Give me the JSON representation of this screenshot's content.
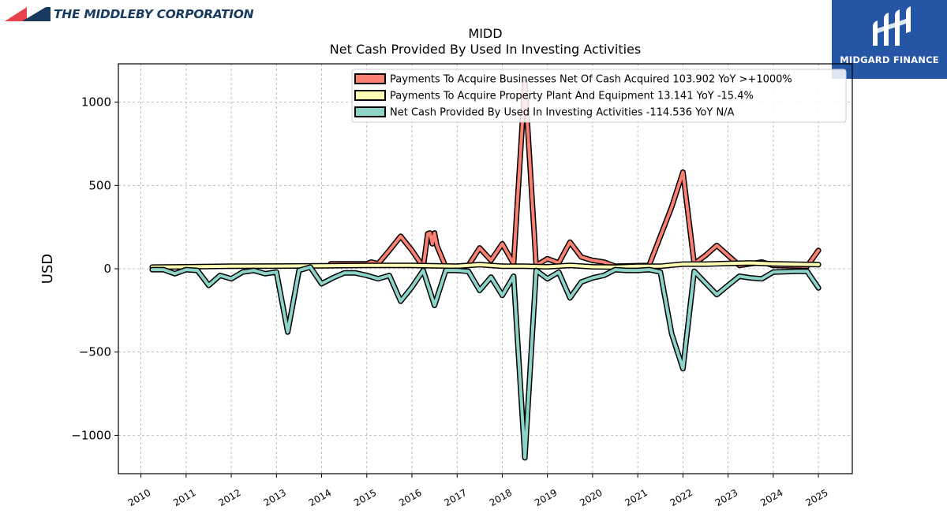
{
  "branding": {
    "left_logo_text": "THE MIDDLEBY CORPORATION",
    "right_logo_text": "MIDGARD FINANCE",
    "left_logo_icon": "red-navy-triangles-icon",
    "right_logo_icon": "midgard-m-icon"
  },
  "chart_data": {
    "type": "line",
    "title": "MIDD",
    "subtitle": "Net Cash Provided By Used In Investing Activities",
    "ylabel": "USD",
    "xlabel": "",
    "xlim": [
      2009.5,
      2025.75
    ],
    "ylim": [
      -1230,
      1230
    ],
    "y_ticks": [
      -1000,
      -500,
      0,
      500,
      1000
    ],
    "y_tick_labels": [
      "−1000",
      "−500",
      "0",
      "500",
      "1000"
    ],
    "x_ticks": [
      2010,
      2011,
      2012,
      2013,
      2014,
      2015,
      2016,
      2017,
      2018,
      2019,
      2020,
      2021,
      2022,
      2023,
      2024,
      2025
    ],
    "x_tick_labels": [
      "2010",
      "2011",
      "2012",
      "2013",
      "2014",
      "2015",
      "2016",
      "2017",
      "2018",
      "2019",
      "2020",
      "2021",
      "2022",
      "2023",
      "2024",
      "2025"
    ],
    "grid": true,
    "legend_position": "top-right",
    "series": [
      {
        "name": "Payments To Acquire Businesses Net Of Cash Acquired",
        "legend_label": "Payments To Acquire Businesses Net Of Cash Acquired  103.902 YoY >+1000%",
        "color": "#fa8072",
        "points": [
          [
            2014.2,
            30
          ],
          [
            2015.0,
            30
          ],
          [
            2015.1,
            40
          ],
          [
            2015.25,
            30
          ],
          [
            2015.5,
            110
          ],
          [
            2015.75,
            195
          ],
          [
            2016.0,
            110
          ],
          [
            2016.25,
            10
          ],
          [
            2016.35,
            210
          ],
          [
            2016.4,
            215
          ],
          [
            2016.45,
            150
          ],
          [
            2016.5,
            215
          ],
          [
            2016.55,
            140
          ],
          [
            2016.75,
            10
          ],
          [
            2017.25,
            20
          ],
          [
            2017.5,
            125
          ],
          [
            2017.75,
            50
          ],
          [
            2018.0,
            150
          ],
          [
            2018.25,
            30
          ],
          [
            2018.5,
            1120
          ],
          [
            2018.75,
            20
          ],
          [
            2019.0,
            60
          ],
          [
            2019.25,
            35
          ],
          [
            2019.5,
            160
          ],
          [
            2019.75,
            70
          ],
          [
            2020.0,
            50
          ],
          [
            2020.25,
            40
          ],
          [
            2020.5,
            15
          ],
          [
            2021.25,
            20
          ],
          [
            2021.75,
            370
          ],
          [
            2022.0,
            580
          ],
          [
            2022.25,
            30
          ],
          [
            2022.5,
            80
          ],
          [
            2022.75,
            140
          ],
          [
            2023.0,
            80
          ],
          [
            2023.25,
            20
          ],
          [
            2023.5,
            30
          ],
          [
            2023.75,
            40
          ],
          [
            2024.0,
            20
          ],
          [
            2024.75,
            15
          ],
          [
            2025.0,
            110
          ]
        ]
      },
      {
        "name": "Payments To Acquire Property Plant And Equipment",
        "legend_label": "Payments To Acquire Property Plant And Equipment  13.141 YoY -15.4%",
        "color": "#ffffb3",
        "points": [
          [
            2010.25,
            10
          ],
          [
            2011.0,
            12
          ],
          [
            2012.0,
            15
          ],
          [
            2013.0,
            16
          ],
          [
            2014.0,
            18
          ],
          [
            2015.0,
            20
          ],
          [
            2016.0,
            20
          ],
          [
            2017.0,
            15
          ],
          [
            2017.5,
            25
          ],
          [
            2018.0,
            15
          ],
          [
            2018.5,
            15
          ],
          [
            2019.0,
            12
          ],
          [
            2019.5,
            20
          ],
          [
            2020.0,
            12
          ],
          [
            2020.5,
            10
          ],
          [
            2021.0,
            15
          ],
          [
            2021.5,
            15
          ],
          [
            2022.0,
            28
          ],
          [
            2022.5,
            28
          ],
          [
            2023.0,
            32
          ],
          [
            2023.5,
            35
          ],
          [
            2024.0,
            30
          ],
          [
            2024.5,
            27
          ],
          [
            2025.0,
            25
          ]
        ]
      },
      {
        "name": "Net Cash Provided By Used In Investing Activities",
        "legend_label": "Net Cash Provided By Used In Investing Activities  -114.536 YoY N/A",
        "color": "#8dd3c7",
        "points": [
          [
            2010.25,
            -5
          ],
          [
            2010.5,
            -5
          ],
          [
            2010.75,
            -30
          ],
          [
            2011.0,
            -5
          ],
          [
            2011.25,
            -10
          ],
          [
            2011.5,
            -100
          ],
          [
            2011.75,
            -40
          ],
          [
            2012.0,
            -60
          ],
          [
            2012.25,
            -20
          ],
          [
            2012.5,
            -10
          ],
          [
            2012.75,
            -30
          ],
          [
            2013.0,
            -20
          ],
          [
            2013.25,
            -380
          ],
          [
            2013.5,
            -10
          ],
          [
            2013.75,
            10
          ],
          [
            2014.0,
            -90
          ],
          [
            2014.25,
            -55
          ],
          [
            2014.5,
            -25
          ],
          [
            2014.75,
            -25
          ],
          [
            2015.0,
            -40
          ],
          [
            2015.25,
            -60
          ],
          [
            2015.5,
            -40
          ],
          [
            2015.75,
            -195
          ],
          [
            2016.0,
            -110
          ],
          [
            2016.25,
            -10
          ],
          [
            2016.5,
            -220
          ],
          [
            2016.75,
            -10
          ],
          [
            2017.0,
            -10
          ],
          [
            2017.25,
            -15
          ],
          [
            2017.5,
            -130
          ],
          [
            2017.75,
            -50
          ],
          [
            2018.0,
            -160
          ],
          [
            2018.25,
            -45
          ],
          [
            2018.5,
            -1135
          ],
          [
            2018.75,
            -10
          ],
          [
            2019.0,
            -60
          ],
          [
            2019.25,
            -20
          ],
          [
            2019.5,
            -175
          ],
          [
            2019.75,
            -80
          ],
          [
            2020.0,
            -55
          ],
          [
            2020.25,
            -40
          ],
          [
            2020.5,
            -5
          ],
          [
            2020.75,
            -10
          ],
          [
            2021.0,
            -10
          ],
          [
            2021.25,
            -5
          ],
          [
            2021.5,
            -20
          ],
          [
            2021.75,
            -390
          ],
          [
            2022.0,
            -600
          ],
          [
            2022.25,
            -15
          ],
          [
            2022.5,
            -85
          ],
          [
            2022.75,
            -155
          ],
          [
            2023.0,
            -100
          ],
          [
            2023.25,
            -45
          ],
          [
            2023.5,
            -55
          ],
          [
            2023.75,
            -60
          ],
          [
            2024.0,
            -20
          ],
          [
            2024.5,
            -15
          ],
          [
            2024.75,
            -15
          ],
          [
            2025.0,
            -115
          ]
        ]
      }
    ]
  }
}
